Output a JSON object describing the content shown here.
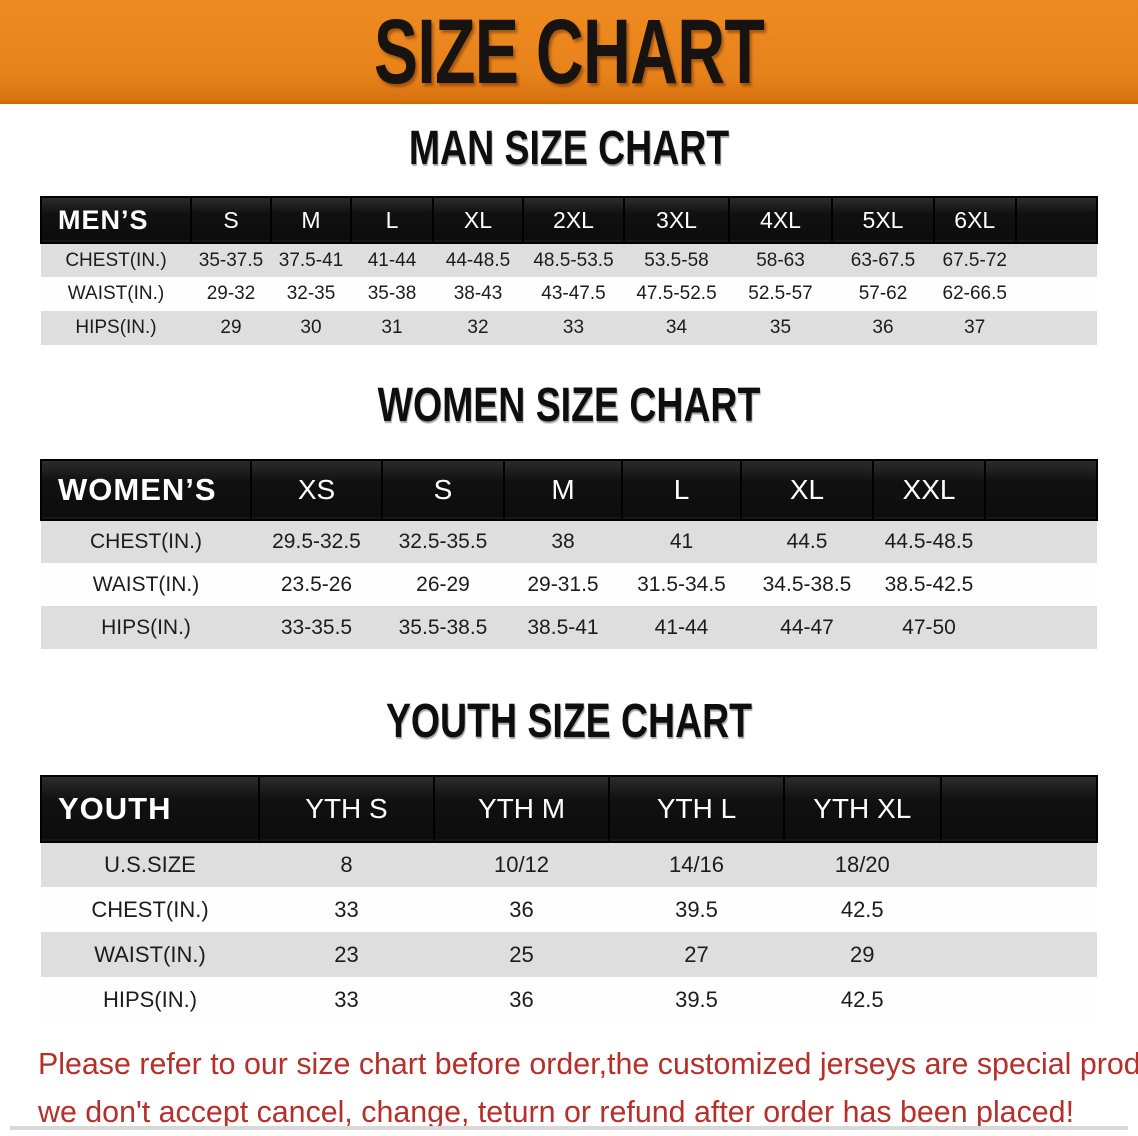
{
  "banner": {
    "title": "SIZE CHART",
    "bg_color": "#E8821B",
    "text_color": "#161310"
  },
  "sections": [
    {
      "heading": "MAN SIZE CHART",
      "table": {
        "label": "MEN’S",
        "columns": [
          "S",
          "M",
          "L",
          "XL",
          "2XL",
          "3XL",
          "4XL",
          "5XL",
          "6XL"
        ],
        "rows": [
          {
            "label": "CHEST(IN.)",
            "values": [
              "35-37.5",
              "37.5-41",
              "41-44",
              "44-48.5",
              "48.5-53.5",
              "53.5-58",
              "58-63",
              "63-67.5",
              "67.5-72"
            ]
          },
          {
            "label": "WAIST(IN.)",
            "values": [
              "29-32",
              "32-35",
              "35-38",
              "38-43",
              "43-47.5",
              "47.5-52.5",
              "52.5-57",
              "57-62",
              "62-66.5"
            ]
          },
          {
            "label": "HIPS(IN.)",
            "values": [
              "29",
              "30",
              "31",
              "32",
              "33",
              "34",
              "35",
              "36",
              "37"
            ]
          }
        ]
      }
    },
    {
      "heading": "WOMEN SIZE CHART",
      "table": {
        "label": "WOMEN’S",
        "columns": [
          "XS",
          "S",
          "M",
          "L",
          "XL",
          "XXL"
        ],
        "rows": [
          {
            "label": "CHEST(IN.)",
            "values": [
              "29.5-32.5",
              "32.5-35.5",
              "38",
              "41",
              "44.5",
              "44.5-48.5"
            ]
          },
          {
            "label": "WAIST(IN.)",
            "values": [
              "23.5-26",
              "26-29",
              "29-31.5",
              "31.5-34.5",
              "34.5-38.5",
              "38.5-42.5"
            ]
          },
          {
            "label": "HIPS(IN.)",
            "values": [
              "33-35.5",
              "35.5-38.5",
              "38.5-41",
              "41-44",
              "44-47",
              "47-50"
            ]
          }
        ]
      }
    },
    {
      "heading": "YOUTH SIZE CHART",
      "table": {
        "label": "YOUTH",
        "columns": [
          "YTH S",
          "YTH M",
          "YTH L",
          "YTH XL"
        ],
        "rows": [
          {
            "label": "U.S.SIZE",
            "values": [
              "8",
              "10/12",
              "14/16",
              "18/20"
            ]
          },
          {
            "label": "CHEST(IN.)",
            "values": [
              "33",
              "36",
              "39.5",
              "42.5"
            ]
          },
          {
            "label": "WAIST(IN.)",
            "values": [
              "23",
              "25",
              "27",
              "29"
            ]
          },
          {
            "label": "HIPS(IN.)",
            "values": [
              "33",
              "36",
              "39.5",
              "42.5"
            ]
          }
        ]
      }
    }
  ],
  "footer": {
    "lines": [
      "Please refer to our size chart before order,the customized jerseys are special products,",
      "we don't accept cancel, change, teturn or refund after order has been placed!"
    ],
    "text_color": "#B5302B"
  },
  "colors": {
    "banner_orange": "#E8821B",
    "header_bar_black": "#111111",
    "row_stripe_gray": "#DEDEDE",
    "footer_red": "#B5302B"
  }
}
